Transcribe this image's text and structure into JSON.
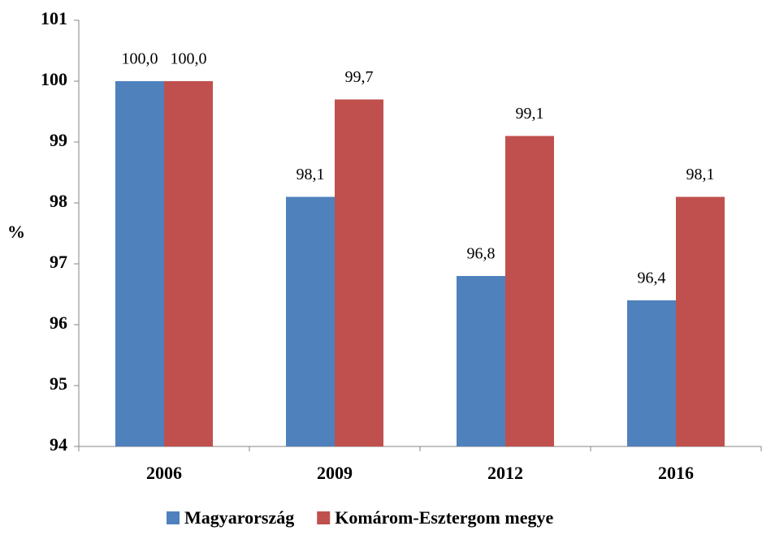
{
  "chart_data": {
    "type": "bar",
    "y_label": "%",
    "categories": [
      "2006",
      "2009",
      "2012",
      "2016"
    ],
    "series": [
      {
        "name": "Magyarország",
        "color": "#4f81bd",
        "values": [
          100,
          98.1,
          96.8,
          96.4
        ],
        "value_labels": [
          "100,0",
          "98,1",
          "96,8",
          "96,4"
        ]
      },
      {
        "name": "Komárom-Esztergom megye",
        "color": "#c0504d",
        "values": [
          100,
          99.7,
          99.1,
          98.1
        ],
        "value_labels": [
          "100,0",
          "99,7",
          "99,1",
          "98,1"
        ]
      }
    ],
    "ylim": [
      94,
      101
    ],
    "yticks": [
      94,
      95,
      96,
      97,
      98,
      99,
      100,
      101
    ],
    "grid": false,
    "legend": "bottom"
  }
}
